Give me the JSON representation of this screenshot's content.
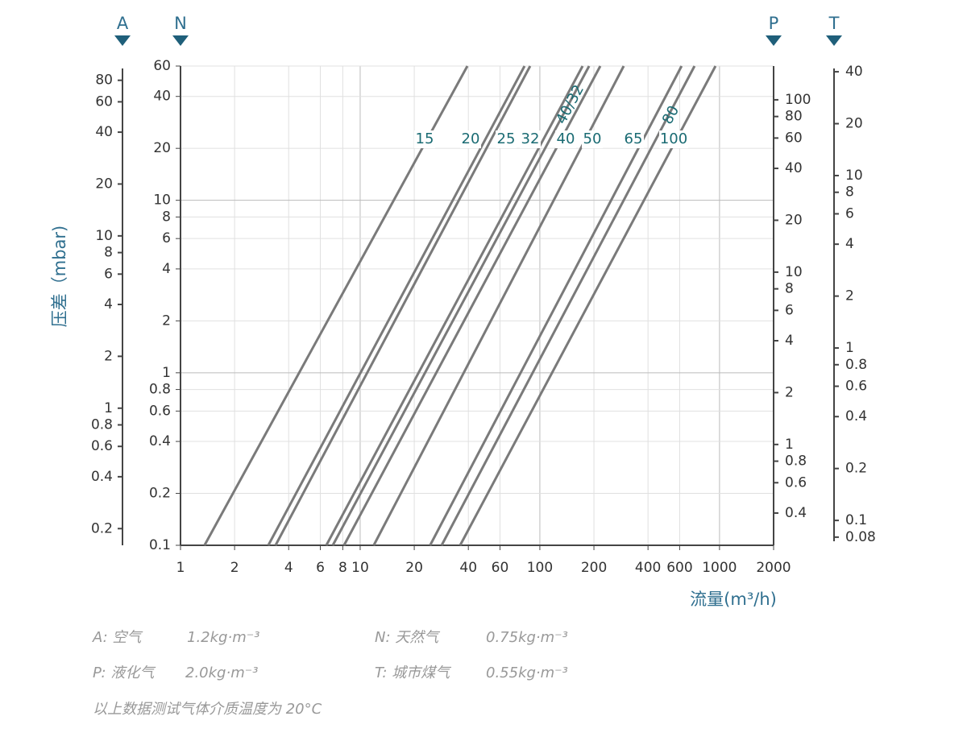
{
  "chart_data": {
    "type": "line",
    "xscale": "log",
    "yscale": "log",
    "grid": true,
    "ylabel": "压差（mbar)",
    "xlabel": "流量(m³/h)",
    "xlim": [
      1,
      2000
    ],
    "xticks": [
      1,
      2,
      4,
      6,
      8,
      10,
      20,
      40,
      60,
      100,
      200,
      400,
      600,
      1000,
      2000
    ],
    "y_axis_name": "N",
    "ylim": [
      0.1,
      60
    ],
    "yticks": [
      0.1,
      0.2,
      0.4,
      0.6,
      0.8,
      1,
      2,
      4,
      6,
      8,
      10,
      20,
      40,
      60
    ],
    "axes": [
      {
        "name": "A",
        "ylim": [
          0.16,
          93.7
        ],
        "yticks": [
          0.2,
          0.4,
          0.6,
          0.8,
          1,
          2,
          4,
          6,
          8,
          10,
          20,
          40,
          60,
          80
        ]
      },
      {
        "name": "P",
        "ylim": [
          0.26,
          157
        ],
        "yticks": [
          0.4,
          0.6,
          0.8,
          1,
          2,
          4,
          6,
          8,
          10,
          20,
          40,
          60,
          80,
          100
        ]
      },
      {
        "name": "T",
        "ylim": [
          0.0757,
          41.8
        ],
        "yticks": [
          0.08,
          0.1,
          0.2,
          0.4,
          0.6,
          0.8,
          1,
          2,
          4,
          6,
          8,
          10,
          20,
          40
        ]
      }
    ],
    "color": "#7a7a7a",
    "series": [
      {
        "name": "15",
        "x": [
          1.36,
          39.5
        ],
        "values": [
          0.1,
          60
        ]
      },
      {
        "name": "20",
        "x": [
          3.08,
          82.2
        ],
        "values": [
          0.1,
          60
        ]
      },
      {
        "name": "25",
        "x": [
          3.38,
          88.3
        ],
        "values": [
          0.1,
          60
        ]
      },
      {
        "name": "32",
        "x": [
          6.48,
          173
        ],
        "values": [
          0.1,
          60
        ]
      },
      {
        "name": "40/32",
        "x": [
          7.04,
          188
        ],
        "values": [
          0.1,
          60
        ]
      },
      {
        "name": "40",
        "x": [
          8.13,
          217
        ],
        "values": [
          0.1,
          60
        ]
      },
      {
        "name": "50",
        "x": [
          11.9,
          293
        ],
        "values": [
          0.1,
          60
        ]
      },
      {
        "name": "65",
        "x": [
          24.5,
          615
        ],
        "values": [
          0.1,
          60
        ]
      },
      {
        "name": "80",
        "x": [
          28.4,
          726
        ],
        "values": [
          0.1,
          60
        ]
      },
      {
        "name": "100",
        "x": [
          36.0,
          950
        ],
        "values": [
          0.1,
          60
        ]
      }
    ]
  },
  "notes": [
    {
      "gas": "A: 空气",
      "density": "1.2kg·m⁻³"
    },
    {
      "gas": "N: 天然气",
      "density": "0.75kg·m⁻³"
    },
    {
      "gas": "P: 液化气",
      "density": "2.0kg·m⁻³"
    },
    {
      "gas": "T: 城市煤气",
      "density": "0.55kg·m⁻³"
    }
  ],
  "footnote": "以上数据测试气体介质温度为 20°C"
}
